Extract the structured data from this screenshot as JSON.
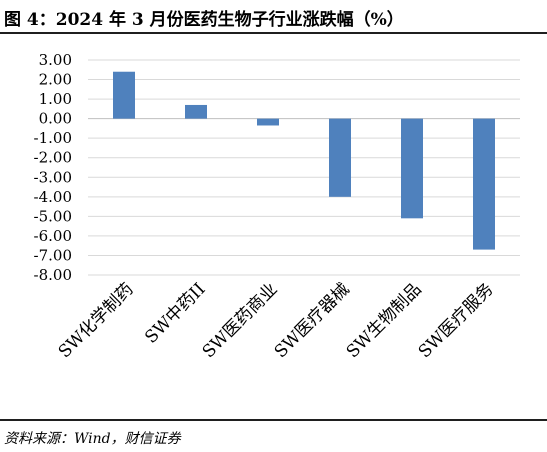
{
  "title": "图 4：2024 年 3 月份医药生物子行业涨跌幅（%）",
  "source": "资料来源：Wind，财信证券",
  "chart_data": {
    "type": "bar",
    "categories": [
      "SW化学制药",
      "SW中药II",
      "SW医药商业",
      "SW医疗器械",
      "SW生物制品",
      "SW医疗服务"
    ],
    "values": [
      2.4,
      0.7,
      -0.35,
      -4.0,
      -5.1,
      -6.7
    ],
    "ylim": [
      -8,
      3
    ],
    "yticks": [
      3,
      2,
      1,
      0,
      -1,
      -2,
      -3,
      -4,
      -5,
      -6,
      -7,
      -8
    ],
    "ytick_labels": [
      "3.00",
      "2.00",
      "1.00",
      "0.00",
      "-1.00",
      "-2.00",
      "-3.00",
      "-4.00",
      "-5.00",
      "-6.00",
      "-7.00",
      "-8.00"
    ],
    "grid": true,
    "legend": "none",
    "bar_color": "#4f81bd",
    "grid_color": "#d9d9d9"
  }
}
